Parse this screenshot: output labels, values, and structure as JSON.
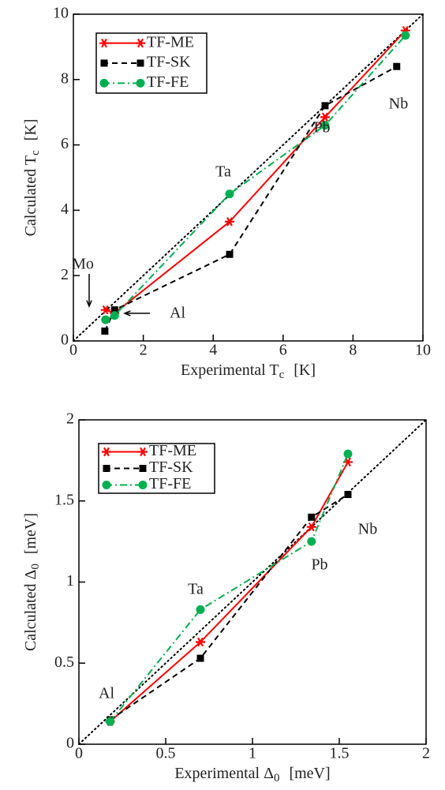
{
  "chart_data": [
    {
      "type": "line",
      "x_label": {
        "text": "Experimental T",
        "sub": "c",
        "unit": "[K]"
      },
      "y_label": {
        "text": "Calculated T",
        "sub": "c",
        "unit": "[K]"
      },
      "xlim": [
        0,
        10
      ],
      "ylim": [
        0,
        10
      ],
      "xticks": [
        0,
        2,
        4,
        6,
        8,
        10
      ],
      "yticks": [
        0,
        2,
        4,
        6,
        8,
        10
      ],
      "legend": "top-left",
      "annotations": [
        "Mo",
        "Al",
        "Ta",
        "Pb",
        "Nb"
      ],
      "series": [
        {
          "name": "TF-ME",
          "color": "#ff0000",
          "x": [
            0.92,
            1.18,
            4.47,
            7.2,
            9.5
          ],
          "values": [
            0.95,
            0.85,
            3.65,
            6.85,
            9.5
          ]
        },
        {
          "name": "TF-SK",
          "color": "#000000",
          "x": [
            0.9,
            1.18,
            4.47,
            7.2,
            9.25
          ],
          "values": [
            0.3,
            0.95,
            2.65,
            7.2,
            8.4
          ]
        },
        {
          "name": "TF-FE",
          "color": "#00b050",
          "x": [
            0.92,
            1.18,
            4.47,
            7.2,
            9.5
          ],
          "values": [
            0.65,
            0.78,
            4.5,
            6.6,
            9.35
          ]
        }
      ]
    },
    {
      "type": "line",
      "x_label": {
        "text": "Experimental Δ",
        "sub": "0",
        "unit": "[meV]"
      },
      "y_label": {
        "text": "Calculated Δ",
        "sub": "0",
        "unit": "[meV]"
      },
      "xlim": [
        0,
        2
      ],
      "ylim": [
        0,
        2
      ],
      "xticks": [
        0,
        0.5,
        1,
        1.5,
        2
      ],
      "yticks": [
        0,
        0.5,
        1,
        1.5,
        2
      ],
      "legend": "top-left",
      "annotations": [
        "Al",
        "Ta",
        "Pb",
        "Nb"
      ],
      "series": [
        {
          "name": "TF-ME",
          "color": "#ff0000",
          "x": [
            0.18,
            0.7,
            1.34,
            1.55
          ],
          "values": [
            0.14,
            0.63,
            1.34,
            1.74
          ]
        },
        {
          "name": "TF-SK",
          "color": "#000000",
          "x": [
            0.18,
            0.7,
            1.34,
            1.55
          ],
          "values": [
            0.15,
            0.53,
            1.4,
            1.54
          ]
        },
        {
          "name": "TF-FE",
          "color": "#00b050",
          "x": [
            0.18,
            0.7,
            1.34,
            1.55
          ],
          "values": [
            0.14,
            0.83,
            1.25,
            1.79
          ]
        }
      ]
    }
  ]
}
